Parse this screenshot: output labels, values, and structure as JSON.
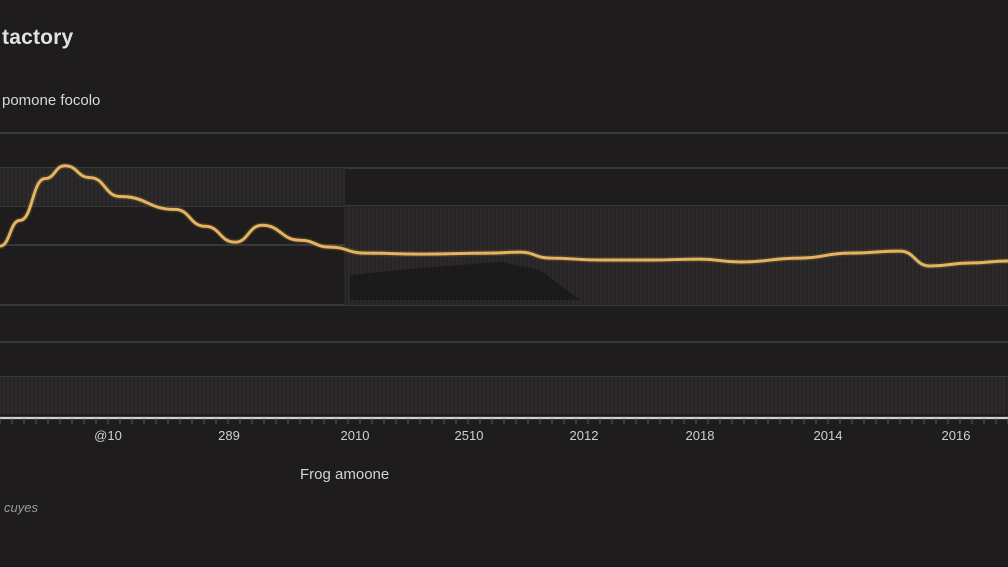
{
  "chart_data": {
    "type": "line",
    "title": "tactory",
    "subtitle": "pomone focolo",
    "xlabel": "Frog amoone",
    "footnote": "cuyes",
    "x_ticks": [
      "@10",
      "289",
      "2010",
      "2510",
      "2012",
      "2018",
      "2014",
      "2016"
    ],
    "x_positions": [
      108,
      229,
      355,
      469,
      584,
      700,
      828,
      956
    ],
    "grid": true,
    "legend": "none",
    "colors": {
      "background": "#1e1c1d",
      "line": "#e3b461",
      "grid": "#4a4848",
      "axis": "#cfcfcf"
    },
    "series": [
      {
        "x": [
          0,
          20,
          45,
          65,
          90,
          120,
          175,
          205,
          235,
          262,
          300,
          330,
          365,
          420,
          490,
          520,
          550,
          600,
          650,
          700,
          740,
          800,
          850,
          900,
          930,
          970,
          1008
        ],
        "y": [
          17.3,
          19.9,
          24.1,
          25.4,
          24.2,
          22.3,
          21.0,
          19.3,
          17.7,
          19.4,
          17.9,
          17.2,
          16.6,
          16.5,
          16.6,
          16.7,
          16.1,
          15.9,
          15.9,
          16.0,
          15.7,
          16.1,
          16.6,
          16.8,
          15.3,
          15.6,
          15.8
        ]
      }
    ],
    "xlim": [
      0,
      1008
    ],
    "ylim": [
      0,
      30
    ]
  }
}
